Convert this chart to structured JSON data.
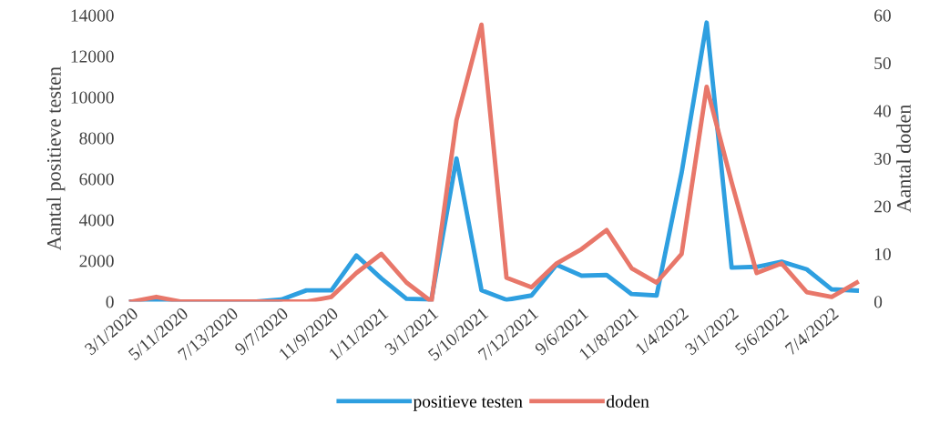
{
  "chart_data": {
    "type": "line",
    "ylabel": "Aantal positieve testen",
    "y2label": "Aantal doden",
    "categories": [
      "3/1/2020",
      null,
      "5/11/2020",
      null,
      "7/13/2020",
      null,
      "9/7/2020",
      null,
      "11/9/2020",
      null,
      "1/11/2021",
      null,
      "3/1/2021",
      null,
      "5/10/2021",
      null,
      "7/12/2021",
      null,
      "9/6/2021",
      null,
      "11/8/2021",
      null,
      "1/4/2022",
      null,
      "3/1/2022",
      null,
      "5/6/2022",
      null,
      "7/4/2022",
      null
    ],
    "series": [
      {
        "name": "positieve testen",
        "color": "#2e9fe0",
        "values": [
          0,
          0,
          0,
          0,
          0,
          0,
          100,
          550,
          550,
          2260,
          1130,
          140,
          100,
          7000,
          560,
          90,
          300,
          1800,
          1270,
          1300,
          370,
          300,
          6300,
          13640,
          1660,
          1700,
          1950,
          1580,
          600,
          540
        ]
      },
      {
        "name": "doden",
        "color": "#e8776a",
        "axis": "y2",
        "values": [
          0,
          1,
          0,
          0,
          0,
          0,
          0,
          0,
          1,
          6,
          10,
          4,
          0,
          38,
          58,
          5,
          3,
          8,
          11,
          15,
          7,
          4,
          10,
          45,
          25,
          6,
          8,
          2,
          1,
          4
        ]
      }
    ],
    "ylim": [
      0,
      14000
    ],
    "yticks": [
      0,
      2000,
      4000,
      6000,
      8000,
      10000,
      12000,
      14000
    ],
    "y2lim": [
      0,
      60
    ],
    "y2ticks": [
      0,
      10,
      20,
      30,
      40,
      50,
      60
    ],
    "legend": "bottom",
    "grid": false,
    "marker": "none",
    "line_style": "solid"
  }
}
